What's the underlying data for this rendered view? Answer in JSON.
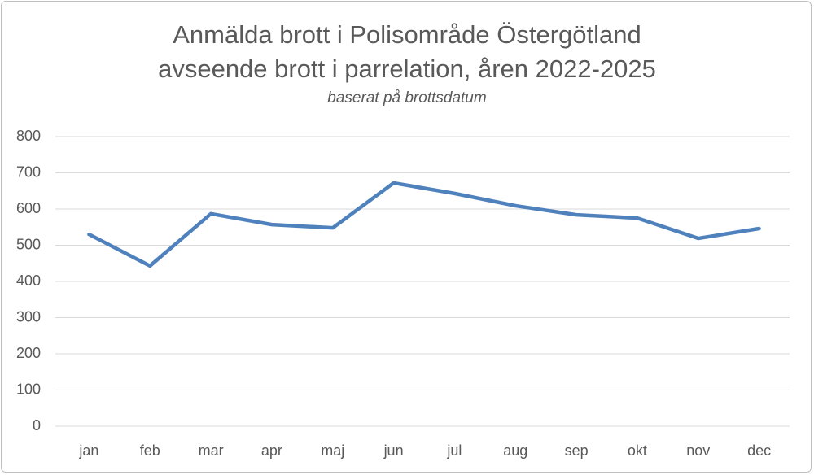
{
  "chart_data": {
    "type": "line",
    "title": "Anmälda brott i Polisområde Östergötland avseende brott i parrelation, åren 2022-2025",
    "subtitle": "baserat på brottsdatum",
    "categories": [
      "jan",
      "feb",
      "mar",
      "apr",
      "maj",
      "jun",
      "jul",
      "aug",
      "sep",
      "okt",
      "nov",
      "dec"
    ],
    "values": [
      530,
      443,
      587,
      557,
      548,
      672,
      643,
      609,
      584,
      575,
      519,
      546
    ],
    "color": "#4f81bd",
    "ylim": [
      0,
      800
    ],
    "yticks": [
      0,
      100,
      200,
      300,
      400,
      500,
      600,
      700,
      800
    ],
    "grid": true
  }
}
